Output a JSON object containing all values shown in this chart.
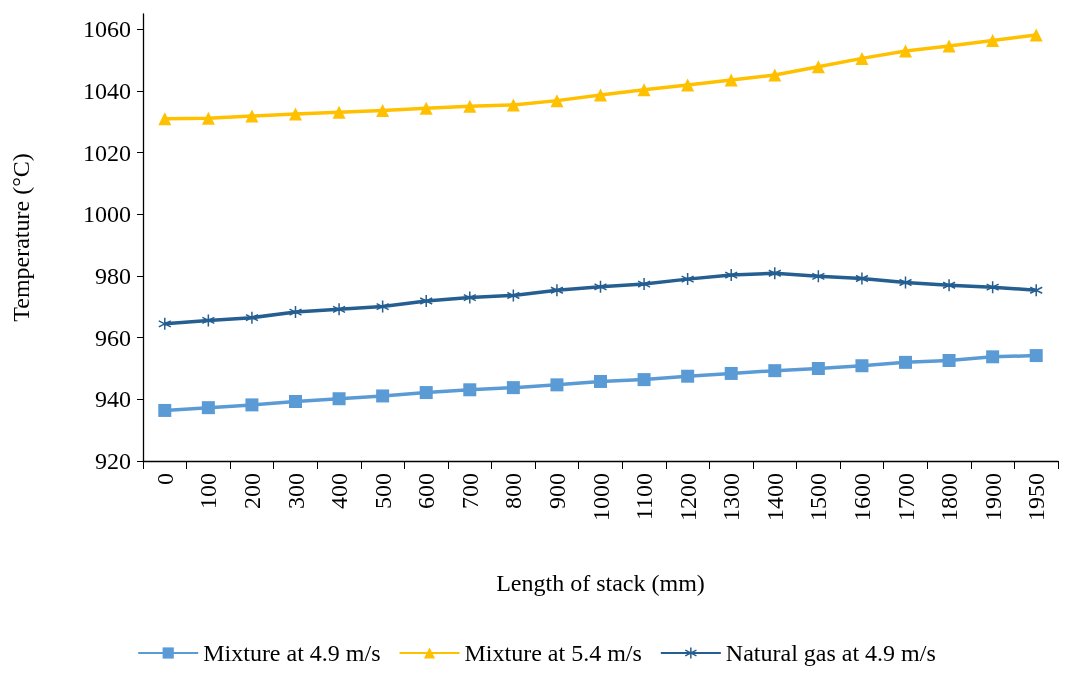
{
  "chart_data": {
    "type": "line",
    "xlabel": "Length of stack (mm)",
    "ylabel": "Temperature (°C)",
    "categories": [
      "0",
      "100",
      "200",
      "300",
      "400",
      "500",
      "600",
      "700",
      "800",
      "900",
      "1000",
      "1100",
      "1200",
      "1300",
      "1400",
      "1500",
      "1600",
      "1700",
      "1800",
      "1900",
      "1950"
    ],
    "series": [
      {
        "name": "Mixture at 4.9 m/s",
        "color": "#5b9bd5",
        "marker": "square",
        "values": [
          936.4,
          937.3,
          938.2,
          939.3,
          940.2,
          941.1,
          942.2,
          943.1,
          943.8,
          944.7,
          945.8,
          946.4,
          947.5,
          948.4,
          949.3,
          950,
          950.9,
          952,
          952.6,
          953.8,
          954.2
        ]
      },
      {
        "name": "Mixture at 5.4 m/s",
        "color": "#ffc000",
        "marker": "triangle",
        "values": [
          1031,
          1031.2,
          1031.9,
          1032.6,
          1033.1,
          1033.7,
          1034.4,
          1035.1,
          1035.5,
          1036.9,
          1038.7,
          1040.4,
          1042,
          1043.6,
          1045.2,
          1047.9,
          1050.6,
          1053,
          1054.6,
          1056.4,
          1058.2
        ]
      },
      {
        "name": "Natural gas at 4.9 m/s",
        "color": "#255e91",
        "marker": "cross",
        "values": [
          964.5,
          965.6,
          966.5,
          968.3,
          969.2,
          970.1,
          971.9,
          973,
          973.7,
          975.4,
          976.5,
          977.4,
          979,
          980.3,
          980.9,
          979.9,
          979.2,
          977.9,
          977,
          976.4,
          975.4
        ]
      }
    ],
    "ylim": [
      920,
      1065
    ],
    "yticks": [
      920,
      940,
      960,
      980,
      1000,
      1020,
      1040,
      1060
    ],
    "grid": false,
    "legend": "bottom"
  }
}
